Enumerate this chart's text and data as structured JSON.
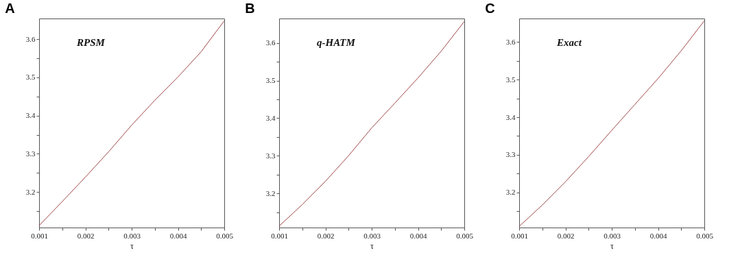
{
  "chart_data": [
    {
      "type": "line",
      "title": "A",
      "xlabel": "τ",
      "annotations": [
        "RPSM"
      ],
      "grid": false,
      "x": [
        0.001,
        0.0015,
        0.002,
        0.0025,
        0.003,
        0.0035,
        0.004,
        0.0045,
        0.005
      ],
      "series": [
        {
          "color": "#a04848",
          "values": [
            3.112,
            3.175,
            3.239,
            3.305,
            3.375,
            3.44,
            3.501,
            3.567,
            3.648
          ]
        }
      ],
      "xlim": [
        0.001,
        0.005
      ],
      "ylim": [
        3.107,
        3.654
      ],
      "xticks": [
        0.001,
        {
          "value": 0.0015,
          "label": null
        },
        0.002,
        {
          "value": 0.0025,
          "label": null
        },
        0.003,
        {
          "value": 0.0035,
          "label": null
        },
        0.004,
        {
          "value": 0.0045,
          "label": null
        },
        0.005
      ],
      "yticks": [
        {
          "value": 3.15,
          "label": null
        },
        3.2,
        {
          "value": 3.25,
          "label": null
        },
        3.3,
        {
          "value": 3.35,
          "label": null
        },
        3.4,
        {
          "value": 3.45,
          "label": null
        },
        3.5,
        {
          "value": 3.55,
          "label": null
        },
        3.6
      ]
    },
    {
      "type": "line",
      "title": "B",
      "xlabel": "τ",
      "annotations": [
        "q-HATM"
      ],
      "grid": false,
      "x": [
        0.001,
        0.0015,
        0.002,
        0.0025,
        0.003,
        0.0035,
        0.004,
        0.0045,
        0.005
      ],
      "series": [
        {
          "color": "#a04848",
          "values": [
            3.113,
            3.17,
            3.232,
            3.3,
            3.374,
            3.44,
            3.507,
            3.578,
            3.657
          ]
        }
      ],
      "xlim": [
        0.001,
        0.005
      ],
      "ylim": [
        3.109,
        3.665
      ],
      "xticks": [
        0.001,
        {
          "value": 0.0015,
          "label": null
        },
        0.002,
        {
          "value": 0.0025,
          "label": null
        },
        0.003,
        {
          "value": 0.0035,
          "label": null
        },
        0.004,
        {
          "value": 0.0045,
          "label": null
        },
        0.005
      ],
      "yticks": [
        {
          "value": 3.15,
          "label": null
        },
        3.2,
        {
          "value": 3.25,
          "label": null
        },
        3.3,
        {
          "value": 3.35,
          "label": null
        },
        3.4,
        {
          "value": 3.45,
          "label": null
        },
        3.5,
        {
          "value": 3.55,
          "label": null
        },
        3.6
      ]
    },
    {
      "type": "line",
      "title": "C",
      "xlabel": "τ",
      "annotations": [
        "Exact"
      ],
      "grid": false,
      "x": [
        0.001,
        0.0015,
        0.002,
        0.0025,
        0.003,
        0.0035,
        0.004,
        0.0045,
        0.005
      ],
      "series": [
        {
          "color": "#a04848",
          "values": [
            3.109,
            3.166,
            3.228,
            3.295,
            3.365,
            3.434,
            3.503,
            3.577,
            3.657
          ]
        }
      ],
      "xlim": [
        0.001,
        0.005
      ],
      "ylim": [
        3.106,
        3.663
      ],
      "xticks": [
        0.001,
        {
          "value": 0.0015,
          "label": null
        },
        0.002,
        {
          "value": 0.0025,
          "label": null
        },
        0.003,
        {
          "value": 0.0035,
          "label": null
        },
        0.004,
        {
          "value": 0.0045,
          "label": null
        },
        0.005
      ],
      "yticks": [
        {
          "value": 3.15,
          "label": null
        },
        3.2,
        {
          "value": 3.25,
          "label": null
        },
        3.3,
        {
          "value": 3.35,
          "label": null
        },
        3.4,
        {
          "value": 3.45,
          "label": null
        },
        3.5,
        {
          "value": 3.55,
          "label": null
        },
        3.6
      ]
    }
  ]
}
